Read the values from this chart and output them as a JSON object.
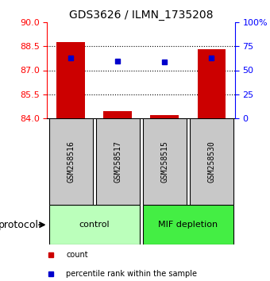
{
  "title": "GDS3626 / ILMN_1735208",
  "samples": [
    "GSM258516",
    "GSM258517",
    "GSM258515",
    "GSM258530"
  ],
  "count_values": [
    88.78,
    84.42,
    84.18,
    88.32
  ],
  "percentile_values": [
    63,
    59.5,
    59,
    63
  ],
  "ylim_left": [
    84,
    90
  ],
  "ylim_right": [
    0,
    100
  ],
  "yticks_left": [
    84,
    85.5,
    87,
    88.5,
    90
  ],
  "yticks_right": [
    0,
    25,
    50,
    75,
    100
  ],
  "bar_color": "#cc0000",
  "marker_color": "#0000cc",
  "groups": [
    {
      "label": "control",
      "indices": [
        0,
        1
      ],
      "color": "#bbffbb"
    },
    {
      "label": "MIF depletion",
      "indices": [
        2,
        3
      ],
      "color": "#44ee44"
    }
  ],
  "sample_box_color": "#c8c8c8",
  "protocol_label": "protocol",
  "legend_count_label": "count",
  "legend_percentile_label": "percentile rank within the sample",
  "bar_width": 0.6,
  "title_fontsize": 10,
  "tick_fontsize": 8,
  "sample_fontsize": 7,
  "group_fontsize": 8,
  "legend_fontsize": 7
}
